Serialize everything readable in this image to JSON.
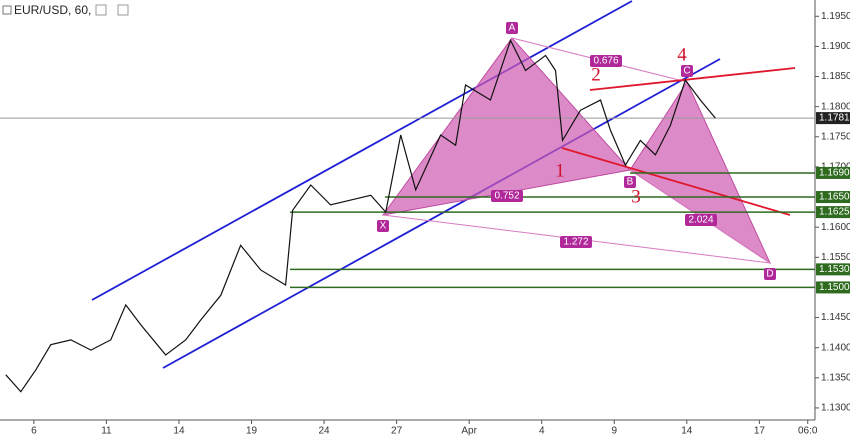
{
  "chart_data": {
    "type": "line",
    "title": "EUR/USD, 60,",
    "x": [
      -1.16,
      -0.54,
      0.08,
      0.7,
      1.53,
      2.36,
      3.18,
      3.8,
      4.42,
      5.45,
      6.28,
      6.9,
      7.73,
      8.55,
      9.38,
      10.41,
      10.7,
      11.45,
      12.27,
      13.1,
      13.93,
      14.55,
      15.17,
      15.79,
      16.82,
      17.44,
      17.85,
      18.88,
      19.71,
      20.33,
      21.16,
      21.57,
      21.86,
      22.6,
      23.43,
      23.84,
      24.46,
      25.08,
      25.7,
      26.32,
      26.94,
      27.56,
      28.18
    ],
    "values": [
      1.1355,
      1.1327,
      1.1363,
      1.1405,
      1.1413,
      1.1396,
      1.1413,
      1.1471,
      1.1438,
      1.1388,
      1.1413,
      1.1446,
      1.1487,
      1.157,
      1.1529,
      1.1504,
      1.1628,
      1.167,
      1.1637,
      1.1645,
      1.1653,
      1.1625,
      1.1753,
      1.1662,
      1.1753,
      1.1736,
      1.1836,
      1.1811,
      1.191,
      1.186,
      1.1885,
      1.186,
      1.1744,
      1.1794,
      1.1811,
      1.1761,
      1.1703,
      1.1744,
      1.172,
      1.1769,
      1.1844,
      1.1811,
      1.1781
    ],
    "color": "#111111",
    "xlim": [
      -1.4,
      32.3
    ],
    "xticks": [
      {
        "value": 0,
        "label": "6"
      },
      {
        "value": 3,
        "label": "11"
      },
      {
        "value": 6,
        "label": "14"
      },
      {
        "value": 9,
        "label": "19"
      },
      {
        "value": 12,
        "label": "24"
      },
      {
        "value": 15,
        "label": "27"
      },
      {
        "value": 18,
        "label": "Apr"
      },
      {
        "value": 21,
        "label": "4"
      },
      {
        "value": 24,
        "label": "9"
      },
      {
        "value": 27,
        "label": "14"
      },
      {
        "value": 30,
        "label": "17"
      },
      {
        "value": 32,
        "label": "06:0"
      }
    ],
    "ylim": [
      1.128,
      1.1977
    ],
    "yticks": [
      {
        "value": 1.195,
        "label": "1.1950"
      },
      {
        "value": 1.19,
        "label": "1.1900"
      },
      {
        "value": 1.185,
        "label": "1.1850"
      },
      {
        "value": 1.18,
        "label": "1.1800"
      },
      {
        "value": 1.175,
        "label": "1.1750"
      },
      {
        "value": 1.17,
        "label": "1.1700"
      },
      {
        "value": 1.16,
        "label": "1.1600"
      },
      {
        "value": 1.155,
        "label": "1.1550"
      },
      {
        "value": 1.145,
        "label": "1.1450"
      },
      {
        "value": 1.14,
        "label": "1.1400"
      },
      {
        "value": 1.135,
        "label": "1.1350"
      },
      {
        "value": 1.13,
        "label": "1.1300"
      }
    ],
    "grid": false,
    "price_line": {
      "value": 1.1781,
      "label": "1.1781",
      "color": "#999999"
    },
    "levels": {
      "color": "#2e6b1f",
      "values": [
        1.169,
        1.165,
        1.1625,
        1.153,
        1.15
      ],
      "value_labels": [
        "1.1690",
        "1.1650",
        "1.1625",
        "1.1530",
        "1.1500"
      ]
    },
    "pattern_points": [
      "X",
      "A",
      "B",
      "C",
      "D"
    ],
    "ratios": [
      0.676,
      0.752,
      1.272,
      2.024
    ],
    "waves": [
      1,
      2,
      3,
      4
    ]
  }
}
